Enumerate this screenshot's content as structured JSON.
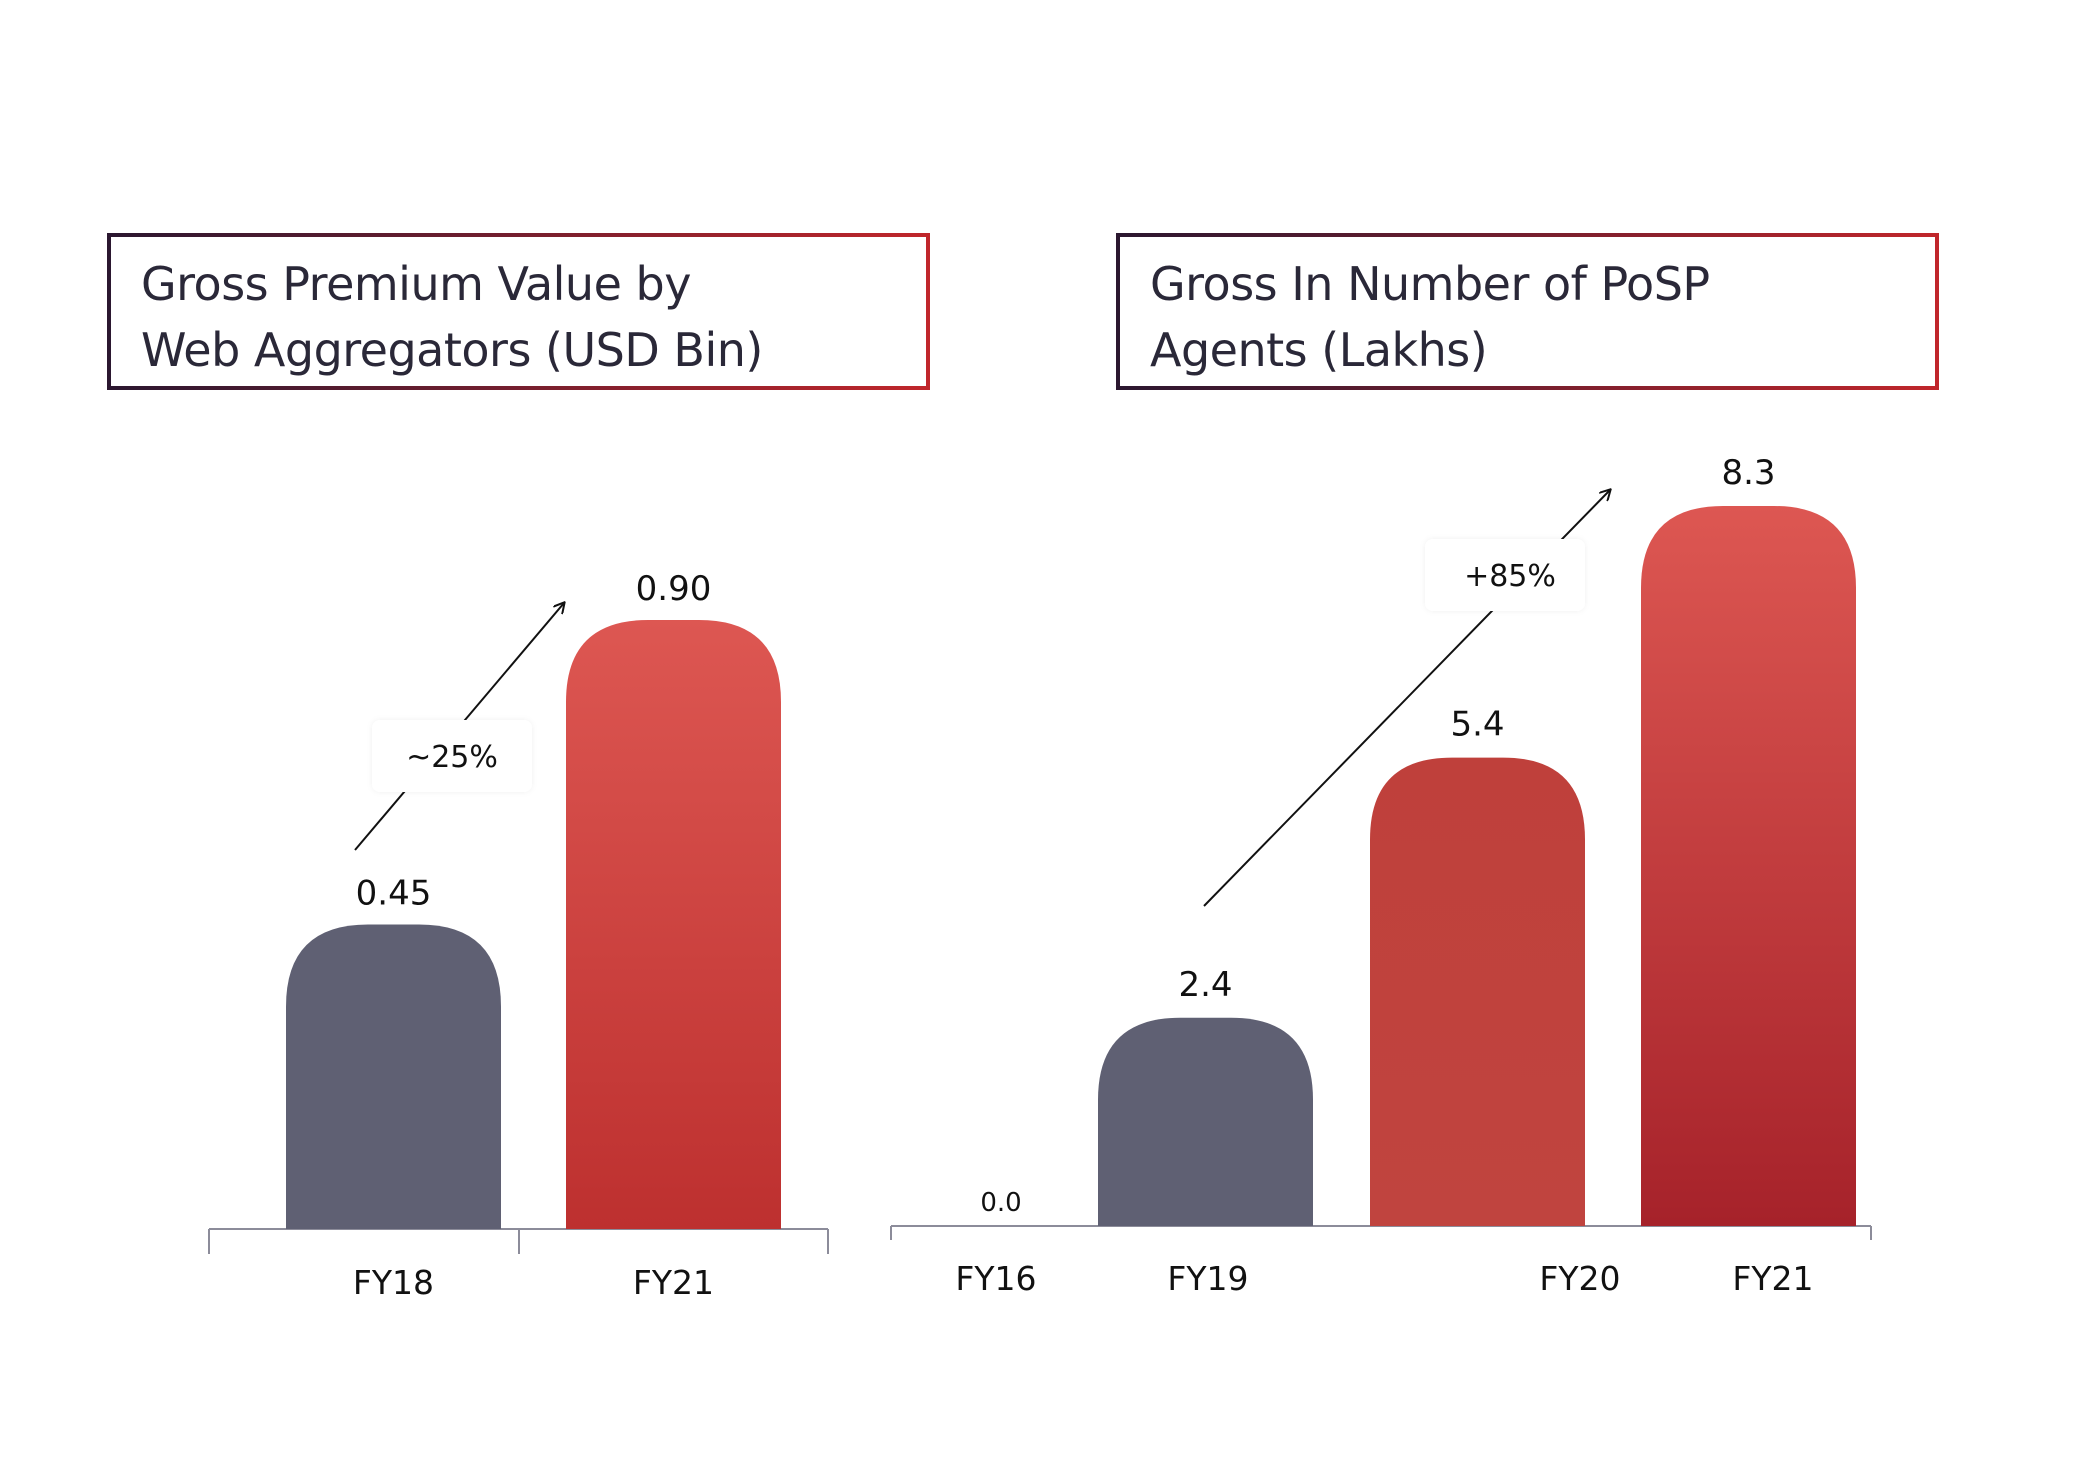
{
  "chart_data": [
    {
      "type": "bar",
      "title": "Gross Premium Value by Web Aggregators (USD Bin)",
      "title_lines": [
        "Gross Premium Value by",
        "Web Aggregators (USD Bin)"
      ],
      "categories": [
        "FY18",
        "FY21"
      ],
      "values": [
        0.45,
        0.9
      ],
      "value_labels": [
        "0.45",
        "0.90"
      ],
      "ylim": [
        0,
        0.9
      ],
      "annotation": "~25%",
      "colors": [
        "#5f6073",
        "#dc514d"
      ]
    },
    {
      "type": "bar",
      "title": "Gross In Number of PoSP Agents (Lakhs)",
      "title_lines": [
        "Gross In Number of PoSP",
        "Agents (Lakhs)"
      ],
      "categories": [
        "FY16",
        "FY19",
        "FY20",
        "FY21"
      ],
      "values": [
        0.0,
        2.4,
        5.4,
        8.3
      ],
      "value_labels": [
        "0.0",
        "2.4",
        "5.4",
        "8.3"
      ],
      "ylim": [
        0,
        8.3
      ],
      "annotation": "+85%",
      "colors": [
        "#5f6073",
        "#5f6073",
        "#be403b",
        "#dc514d"
      ]
    }
  ]
}
